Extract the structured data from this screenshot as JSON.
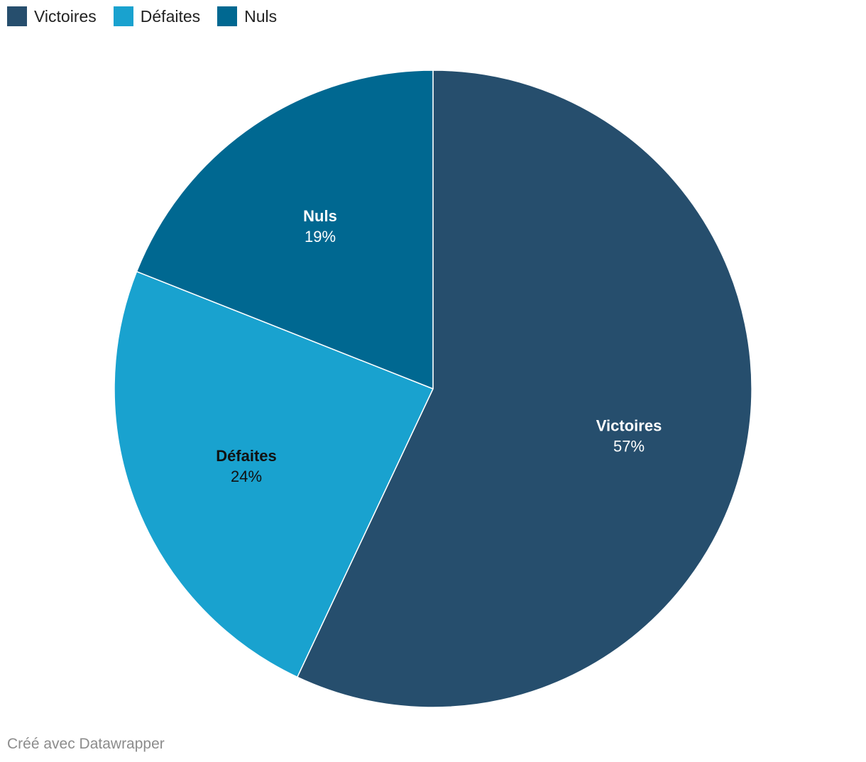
{
  "colors": {
    "victoires": "#264e6d",
    "defaites": "#19a2cf",
    "nuls": "#006891"
  },
  "legend": [
    {
      "label": "Victoires",
      "color": "#264e6d"
    },
    {
      "label": "Défaites",
      "color": "#19a2cf"
    },
    {
      "label": "Nuls",
      "color": "#006891"
    }
  ],
  "chart_data": {
    "type": "pie",
    "categories": [
      "Victoires",
      "Défaites",
      "Nuls"
    ],
    "values": [
      57,
      24,
      19
    ],
    "value_labels": [
      "57%",
      "24%",
      "19%"
    ],
    "colors": [
      "#264e6d",
      "#19a2cf",
      "#006891"
    ],
    "label_colors": [
      "#ffffff",
      "#111111",
      "#ffffff"
    ],
    "legend": "top-left"
  },
  "footer": {
    "credit": "Créé avec Datawrapper"
  }
}
